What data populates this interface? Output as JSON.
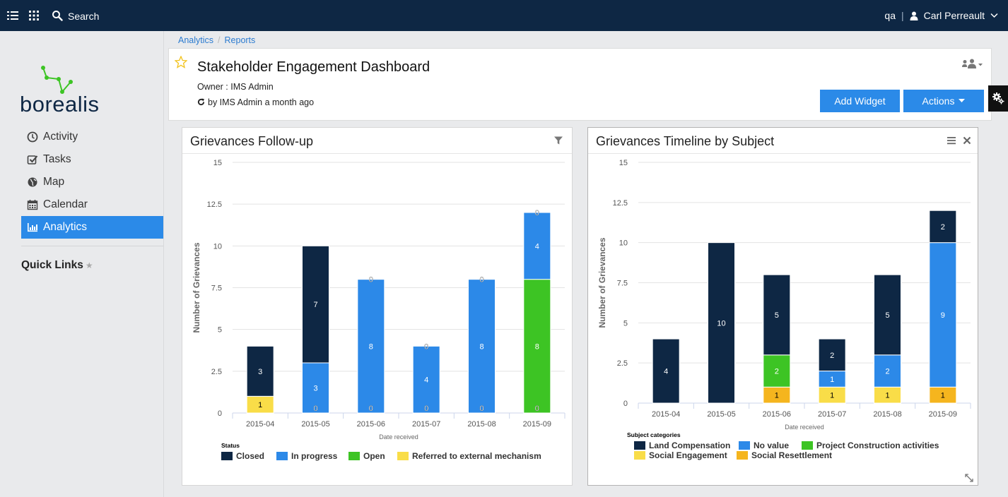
{
  "topbar": {
    "search_label": "Search",
    "org": "qa",
    "separator": "|",
    "user_name": "Carl Perreault",
    "icons": [
      "list-icon",
      "apps-grid-icon",
      "search-icon",
      "user-icon",
      "chevron-down-icon"
    ],
    "bg_color": "#0e2744"
  },
  "sidebar": {
    "logo_text": "borealis",
    "items": [
      {
        "label": "Activity",
        "icon": "clock-icon"
      },
      {
        "label": "Tasks",
        "icon": "checkbox-icon"
      },
      {
        "label": "Map",
        "icon": "globe-icon"
      },
      {
        "label": "Calendar",
        "icon": "calendar-icon"
      },
      {
        "label": "Analytics",
        "icon": "bar-chart-icon",
        "active": true
      }
    ],
    "quick_links": "Quick Links",
    "accent_color": "#2b8ae8"
  },
  "breadcrumb": [
    "Analytics",
    "Reports"
  ],
  "dashboard": {
    "title": "Stakeholder Engagement Dashboard",
    "owner": "Owner : IMS Admin",
    "updated": "by IMS Admin a month ago",
    "add_widget": "Add Widget",
    "actions": "Actions"
  },
  "widgets": {
    "followup": {
      "title": "Grievances Follow-up"
    },
    "timeline": {
      "title": "Grievances Timeline by Subject"
    }
  },
  "chart_data": [
    {
      "type": "bar",
      "stacked": true,
      "title": "Grievances Follow-up",
      "xlabel": "Date received",
      "ylabel": "Number of Grievances",
      "ylim": [
        0,
        15
      ],
      "yticks": [
        "0",
        "2.5",
        "5",
        "7.5",
        "10",
        "12.5",
        "15"
      ],
      "categories": [
        "2015-04",
        "2015-05",
        "2015-06",
        "2015-07",
        "2015-08",
        "2015-09"
      ],
      "legend_title": "Status",
      "legend_position": "bottom",
      "series": [
        {
          "name": "Referred to external mechanism",
          "color": "#f9dd48",
          "values": [
            1,
            null,
            null,
            null,
            null,
            null
          ],
          "labels": [
            "1",
            "",
            "",
            "",
            "",
            ""
          ]
        },
        {
          "name": "Open",
          "color": "#3dc424",
          "values": [
            null,
            null,
            null,
            null,
            null,
            8
          ],
          "labels": [
            "",
            "",
            "",
            "",
            "",
            "8"
          ]
        },
        {
          "name": "In progress",
          "color": "#2c89e8",
          "values": [
            null,
            3,
            8,
            4,
            8,
            4
          ],
          "labels": [
            "",
            "3",
            "8",
            "4",
            "8",
            "4"
          ]
        },
        {
          "name": "Closed",
          "color": "#0e2744",
          "values": [
            3,
            7,
            null,
            null,
            null,
            null
          ],
          "labels": [
            "3",
            "7",
            "",
            "",
            "",
            ""
          ]
        }
      ],
      "zero_labels": [
        {
          "category": "2015-05",
          "position": "base",
          "text": "0"
        },
        {
          "category": "2015-06",
          "position": "base",
          "text": "0"
        },
        {
          "category": "2015-06",
          "position": "top",
          "text": "0"
        },
        {
          "category": "2015-07",
          "position": "base",
          "text": "0"
        },
        {
          "category": "2015-07",
          "position": "top",
          "text": "0"
        },
        {
          "category": "2015-08",
          "position": "base",
          "text": "0"
        },
        {
          "category": "2015-08",
          "position": "top",
          "text": "0"
        },
        {
          "category": "2015-09",
          "position": "base",
          "text": "0"
        },
        {
          "category": "2015-09",
          "position": "top",
          "text": "0"
        }
      ],
      "legend_order": [
        "Closed",
        "In progress",
        "Open",
        "Referred to external mechanism"
      ]
    },
    {
      "type": "bar",
      "stacked": true,
      "title": "Grievances Timeline by Subject",
      "xlabel": "Date received",
      "ylabel": "Number of Grievances",
      "ylim": [
        0,
        15
      ],
      "yticks": [
        "0",
        "2.5",
        "5",
        "7.5",
        "10",
        "12.5",
        "15"
      ],
      "categories": [
        "2015-04",
        "2015-05",
        "2015-06",
        "2015-07",
        "2015-08",
        "2015-09"
      ],
      "legend_title": "Subject categories",
      "legend_position": "bottom",
      "series": [
        {
          "name": "Social Resettlement",
          "color": "#f5b51e",
          "values": [
            null,
            null,
            1,
            null,
            null,
            1
          ],
          "labels": [
            "",
            "",
            "1",
            "",
            "",
            "1"
          ]
        },
        {
          "name": "Social Engagement",
          "color": "#f9dd48",
          "values": [
            null,
            null,
            null,
            1,
            1,
            null
          ],
          "labels": [
            "",
            "",
            "",
            "1",
            "1",
            ""
          ]
        },
        {
          "name": "Project Construction activities",
          "color": "#3dc424",
          "values": [
            null,
            null,
            2,
            null,
            null,
            null
          ],
          "labels": [
            "",
            "",
            "2",
            "",
            "",
            ""
          ]
        },
        {
          "name": "No value",
          "color": "#2c89e8",
          "values": [
            null,
            null,
            null,
            1,
            2,
            9
          ],
          "labels": [
            "",
            "",
            "",
            "1",
            "2",
            "9"
          ]
        },
        {
          "name": "Land Compensation",
          "color": "#0e2744",
          "values": [
            4,
            10,
            5,
            2,
            5,
            2
          ],
          "labels": [
            "4",
            "10",
            "5",
            "2",
            "5",
            "2"
          ]
        }
      ],
      "legend_order": [
        "Land Compensation",
        "No value",
        "Project Construction activities",
        "Social Engagement",
        "Social Resettlement"
      ]
    }
  ]
}
